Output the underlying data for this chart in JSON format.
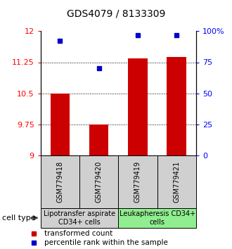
{
  "title": "GDS4079 / 8133309",
  "samples": [
    "GSM779418",
    "GSM779420",
    "GSM779419",
    "GSM779421"
  ],
  "transformed_counts": [
    10.5,
    9.75,
    11.35,
    11.38
  ],
  "percentile_ranks": [
    92,
    70,
    97,
    97
  ],
  "ylim_left": [
    9,
    12
  ],
  "ylim_right": [
    0,
    100
  ],
  "yticks_left": [
    9,
    9.75,
    10.5,
    11.25,
    12
  ],
  "ytick_labels_left": [
    "9",
    "9.75",
    "10.5",
    "11.25",
    "12"
  ],
  "yticks_right": [
    0,
    25,
    50,
    75,
    100
  ],
  "ytick_labels_right": [
    "0",
    "25",
    "50",
    "75",
    "100%"
  ],
  "dotted_lines": [
    9.75,
    10.5,
    11.25
  ],
  "bar_color": "#cc0000",
  "dot_color": "#0000cc",
  "bar_bottom": 9,
  "groups": [
    {
      "label": "Lipotransfer aspirate\nCD34+ cells",
      "samples": [
        0,
        1
      ],
      "color": "#90ee90"
    },
    {
      "label": "Leukapheresis CD34+\ncells",
      "samples": [
        2,
        3
      ],
      "color": "#90ee90"
    }
  ],
  "group_bg_colors": [
    "#d0d0d0",
    "#90ee90"
  ],
  "cell_type_label": "cell type",
  "legend_bar_label": "transformed count",
  "legend_dot_label": "percentile rank within the sample",
  "title_fontsize": 10,
  "tick_label_fontsize": 8,
  "sample_fontsize": 7,
  "group_fontsize": 7
}
